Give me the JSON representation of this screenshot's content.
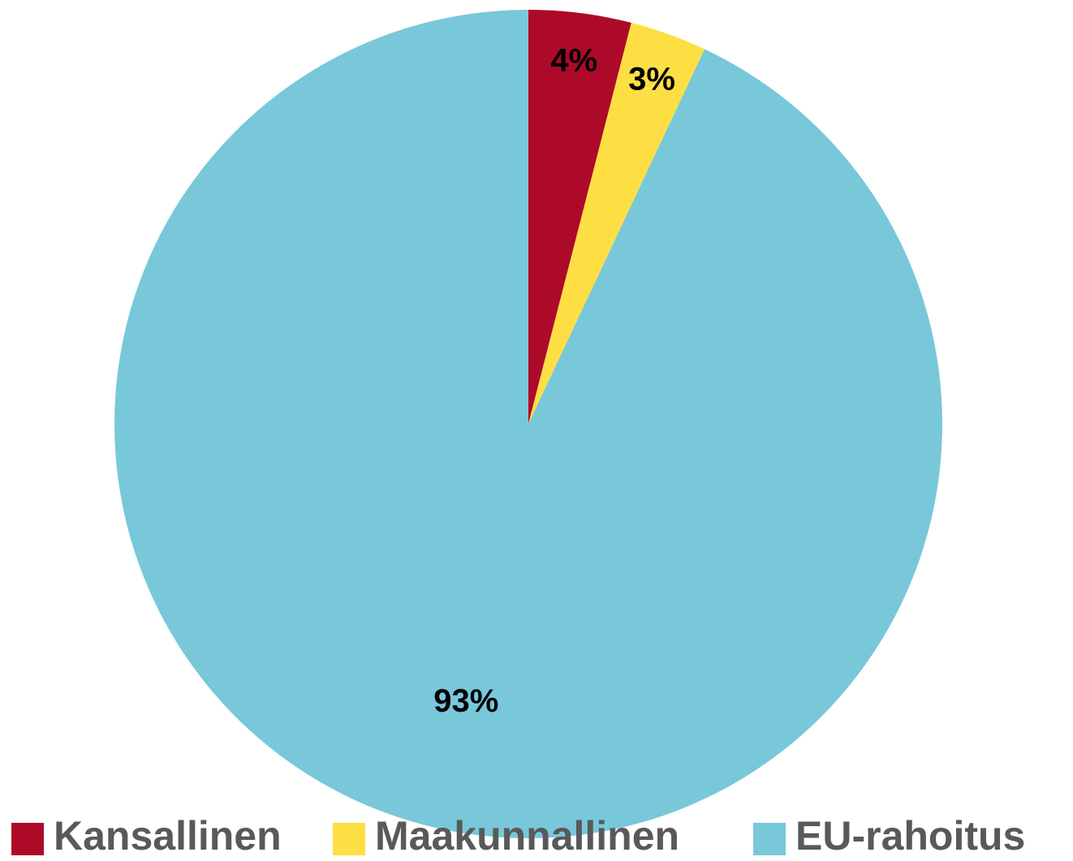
{
  "chart_data": {
    "type": "pie",
    "categories": [
      "Kansallinen",
      "Maakunnallinen",
      "EU-rahoitus"
    ],
    "values": [
      4,
      3,
      93
    ],
    "value_labels": [
      "4%",
      "3%",
      "93%"
    ],
    "colors": [
      "#ad0a2a",
      "#fddf43",
      "#78c8da"
    ],
    "legend": "bottom"
  }
}
